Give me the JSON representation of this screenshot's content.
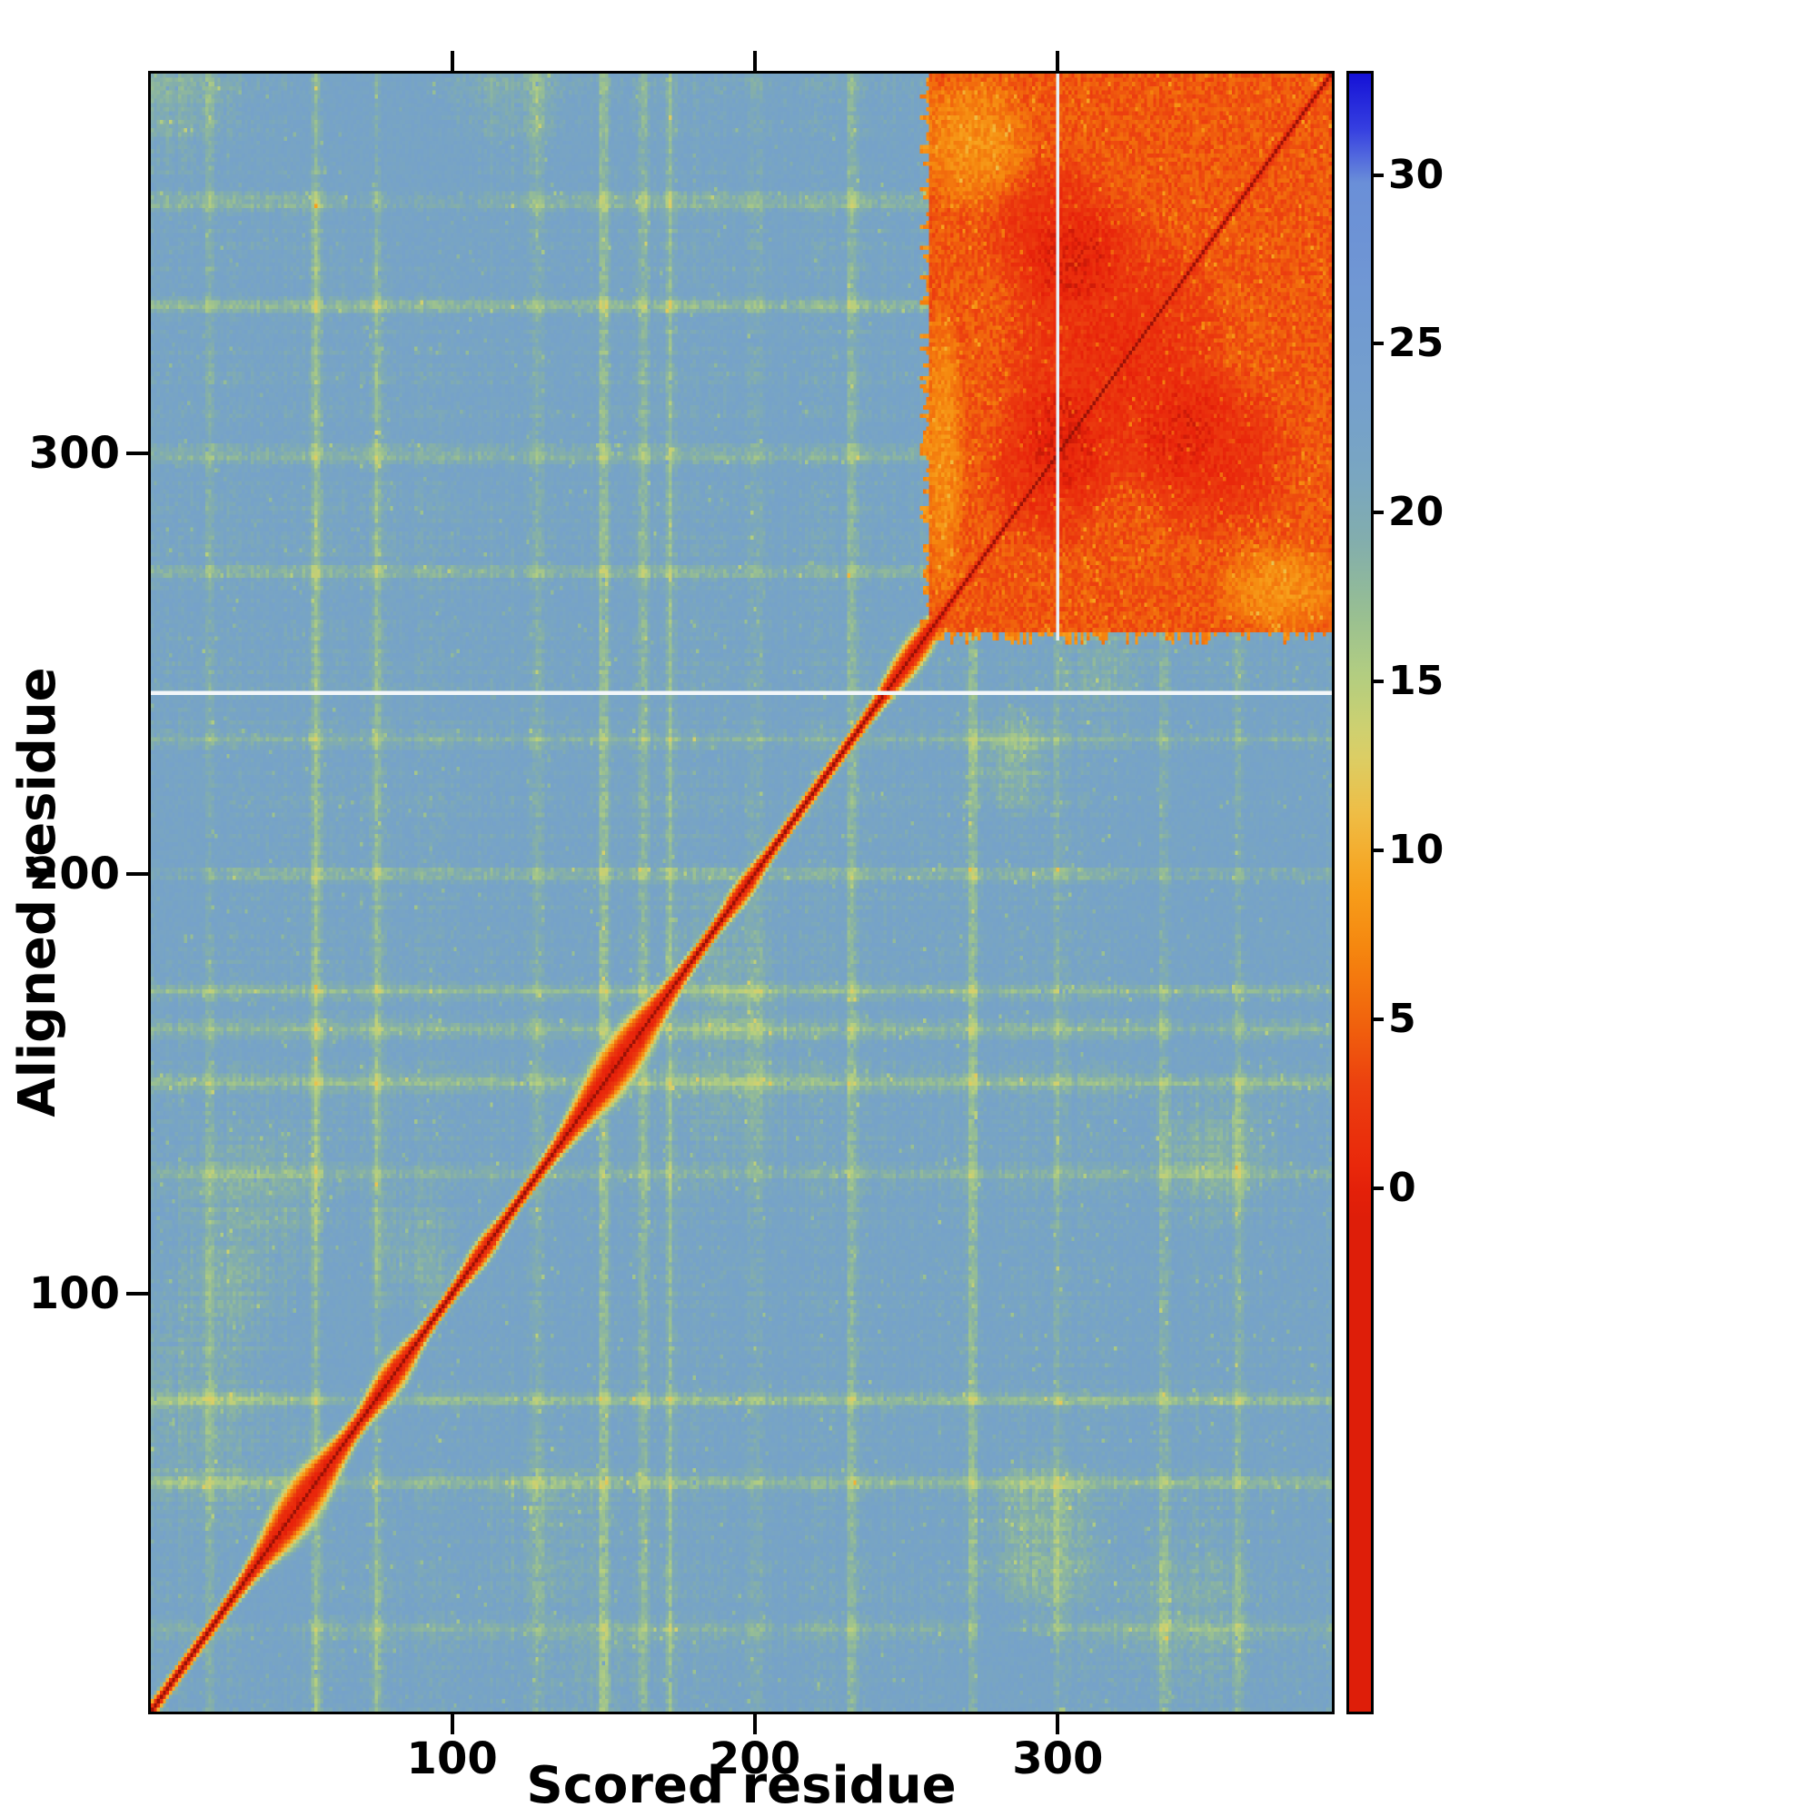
{
  "chart_data": {
    "type": "heatmap",
    "title": "",
    "xlabel": "Scored residue",
    "ylabel": "Aligned residue",
    "x_range": [
      1,
      390
    ],
    "y_range": [
      1,
      390
    ],
    "x_ticks": [
      100,
      200,
      300
    ],
    "y_ticks": [
      100,
      200,
      300
    ],
    "n_residues": 390,
    "grid": false,
    "legend_position": "right-colorbar",
    "colorbar": {
      "vmin": -15.5,
      "vmax": 33,
      "ticks": [
        0,
        5,
        10,
        15,
        20,
        25,
        30
      ],
      "clamp_min": -0.3
    },
    "colormap_stops": [
      [
        -3,
        "#8a1005"
      ],
      [
        -0.5,
        "#d81c08"
      ],
      [
        0,
        "#e8220a"
      ],
      [
        3,
        "#ec3f0f"
      ],
      [
        5,
        "#f1650d"
      ],
      [
        7,
        "#f5850e"
      ],
      [
        9,
        "#f7a01c"
      ],
      [
        11,
        "#f0bc44"
      ],
      [
        13,
        "#d8d069"
      ],
      [
        15,
        "#b5cf7f"
      ],
      [
        17,
        "#98bf92"
      ],
      [
        19,
        "#83aeab"
      ],
      [
        21,
        "#79a6c0"
      ],
      [
        23,
        "#75a1cb"
      ],
      [
        26,
        "#7199d2"
      ],
      [
        30,
        "#6a8ed8"
      ],
      [
        31,
        "#3c49e2"
      ],
      [
        33,
        "#1511d6"
      ]
    ],
    "background_value": 22,
    "features": {
      "seed": 1337,
      "cell_noise": 2.6,
      "diagonal": {
        "base_halfwidth": 3.0,
        "bumps": [
          {
            "center": 50,
            "radius": 13,
            "extra_width": 7.5
          },
          {
            "center": 80,
            "radius": 8,
            "extra_width": 4
          },
          {
            "center": 110,
            "radius": 6,
            "extra_width": 2
          },
          {
            "center": 155,
            "radius": 15,
            "extra_width": 7.5
          },
          {
            "center": 196,
            "radius": 6,
            "extra_width": 2
          },
          {
            "center": 252,
            "radius": 9,
            "extra_width": 3.5
          }
        ]
      },
      "domain_block": {
        "start": 258,
        "end": 390,
        "value": 4.2,
        "dark_patches": [
          {
            "x": 318,
            "y": 322,
            "rx": 40,
            "ry": 38
          },
          {
            "x": 296,
            "y": 296,
            "rx": 22,
            "ry": 22
          },
          {
            "x": 352,
            "y": 300,
            "rx": 28,
            "ry": 22
          },
          {
            "x": 300,
            "y": 352,
            "rx": 26,
            "ry": 20
          }
        ],
        "orange_patches": [
          {
            "x": 272,
            "y": 374,
            "rx": 22,
            "ry": 18
          },
          {
            "x": 374,
            "y": 268,
            "rx": 24,
            "ry": 12
          },
          {
            "x": 262,
            "y": 300,
            "rx": 8,
            "ry": 40
          }
        ]
      },
      "streaks": [
        {
          "pos": 20,
          "s": -2.5
        },
        {
          "pos": 55,
          "s": -4.5
        },
        {
          "pos": 75,
          "s": -4
        },
        {
          "pos": 128,
          "s": -3
        },
        {
          "pos": 150,
          "s": -5
        },
        {
          "pos": 163,
          "s": -4
        },
        {
          "pos": 172,
          "s": -3.5
        },
        {
          "pos": 200,
          "s": -3
        },
        {
          "pos": 232,
          "s": -4
        },
        {
          "pos": 272,
          "s": -4.5
        },
        {
          "pos": 300,
          "s": -3.5
        },
        {
          "pos": 335,
          "s": -4
        },
        {
          "pos": 360,
          "s": -4.5
        }
      ],
      "white_h_line_row": 243,
      "white_v_line_col": 300
    }
  }
}
